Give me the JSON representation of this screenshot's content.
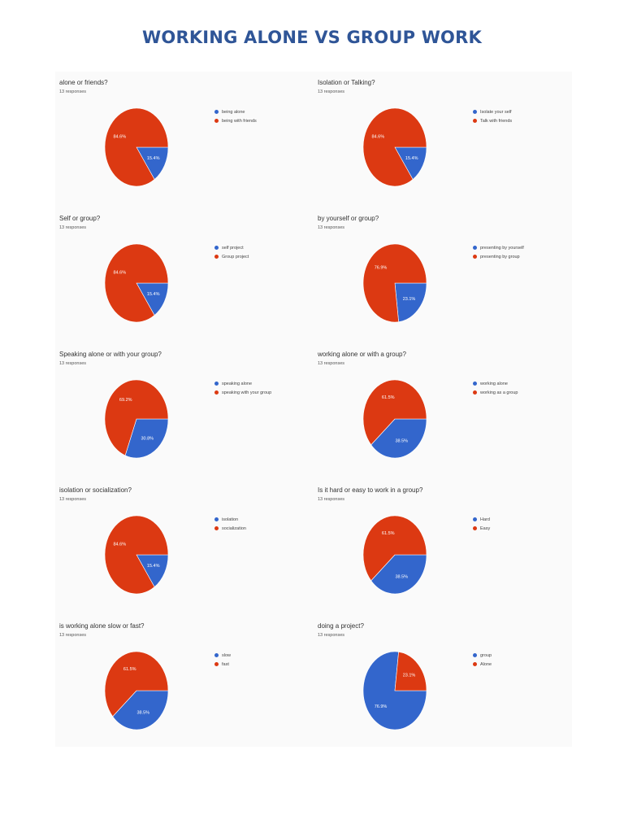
{
  "page": {
    "title": "WORKING ALONE VS GROUP WORK"
  },
  "colors": {
    "blue": "#3366cc",
    "red": "#dc3912"
  },
  "chart_data": [
    {
      "type": "pie",
      "title": "alone or friends?",
      "subtitle": "13 responses",
      "labels": [
        "being alone",
        "being with friends"
      ],
      "values": [
        15.4,
        84.6
      ],
      "colors": [
        "#3366cc",
        "#dc3912"
      ],
      "slice_labels": [
        "15.4%",
        "84.6%"
      ],
      "legend_position": "right"
    },
    {
      "type": "pie",
      "title": "Isolation or Talking?",
      "subtitle": "13 responses",
      "labels": [
        "Isolate your self",
        "Talk with friends"
      ],
      "values": [
        15.4,
        84.6
      ],
      "colors": [
        "#3366cc",
        "#dc3912"
      ],
      "slice_labels": [
        "15.4%",
        "84.6%"
      ],
      "legend_position": "right"
    },
    {
      "type": "pie",
      "title": "Self or group?",
      "subtitle": "13 responses",
      "labels": [
        "self project",
        "Group project"
      ],
      "values": [
        15.4,
        84.6
      ],
      "colors": [
        "#3366cc",
        "#dc3912"
      ],
      "slice_labels": [
        "15.4%",
        "84.6%"
      ],
      "legend_position": "right"
    },
    {
      "type": "pie",
      "title": "by yourself or group?",
      "subtitle": "13 responses",
      "labels": [
        "presenting by yourself",
        "presenting by group"
      ],
      "values": [
        23.1,
        76.9
      ],
      "colors": [
        "#3366cc",
        "#dc3912"
      ],
      "slice_labels": [
        "23.1%",
        "76.9%"
      ],
      "legend_position": "right"
    },
    {
      "type": "pie",
      "title": "Speaking alone or with your group?",
      "subtitle": "13 responses",
      "labels": [
        "speaking alone",
        "speaking with your group"
      ],
      "values": [
        30.8,
        69.2
      ],
      "colors": [
        "#3366cc",
        "#dc3912"
      ],
      "slice_labels": [
        "30.8%",
        "69.2%"
      ],
      "legend_position": "right"
    },
    {
      "type": "pie",
      "title": "working alone or with a group?",
      "subtitle": "13 responses",
      "labels": [
        "working alone",
        "working as a group"
      ],
      "values": [
        38.5,
        61.5
      ],
      "colors": [
        "#3366cc",
        "#dc3912"
      ],
      "slice_labels": [
        "38.5%",
        "61.5%"
      ],
      "legend_position": "right"
    },
    {
      "type": "pie",
      "title": "isolation or socialization?",
      "subtitle": "13 responses",
      "labels": [
        "isolation",
        "socialization"
      ],
      "values": [
        15.4,
        84.6
      ],
      "colors": [
        "#3366cc",
        "#dc3912"
      ],
      "slice_labels": [
        "15.4%",
        "84.6%"
      ],
      "legend_position": "right"
    },
    {
      "type": "pie",
      "title": "Is it hard or easy to work in a group?",
      "subtitle": "13 responses",
      "labels": [
        "Hard",
        "Easy"
      ],
      "values": [
        38.5,
        61.5
      ],
      "colors": [
        "#3366cc",
        "#dc3912"
      ],
      "slice_labels": [
        "38.5%",
        "61.5%"
      ],
      "legend_position": "right"
    },
    {
      "type": "pie",
      "title": "is working alone slow or fast?",
      "subtitle": "13 responses",
      "labels": [
        "slow",
        "fast"
      ],
      "values": [
        38.5,
        61.5
      ],
      "colors": [
        "#3366cc",
        "#dc3912"
      ],
      "slice_labels": [
        "38.5%",
        "61.5%"
      ],
      "legend_position": "right"
    },
    {
      "type": "pie",
      "title": "doing a project?",
      "subtitle": "13 responses",
      "labels": [
        "group",
        "Alone"
      ],
      "values": [
        76.9,
        23.1
      ],
      "colors": [
        "#3366cc",
        "#dc3912"
      ],
      "slice_labels": [
        "76.9%",
        "23.1%"
      ],
      "legend_position": "right"
    }
  ]
}
